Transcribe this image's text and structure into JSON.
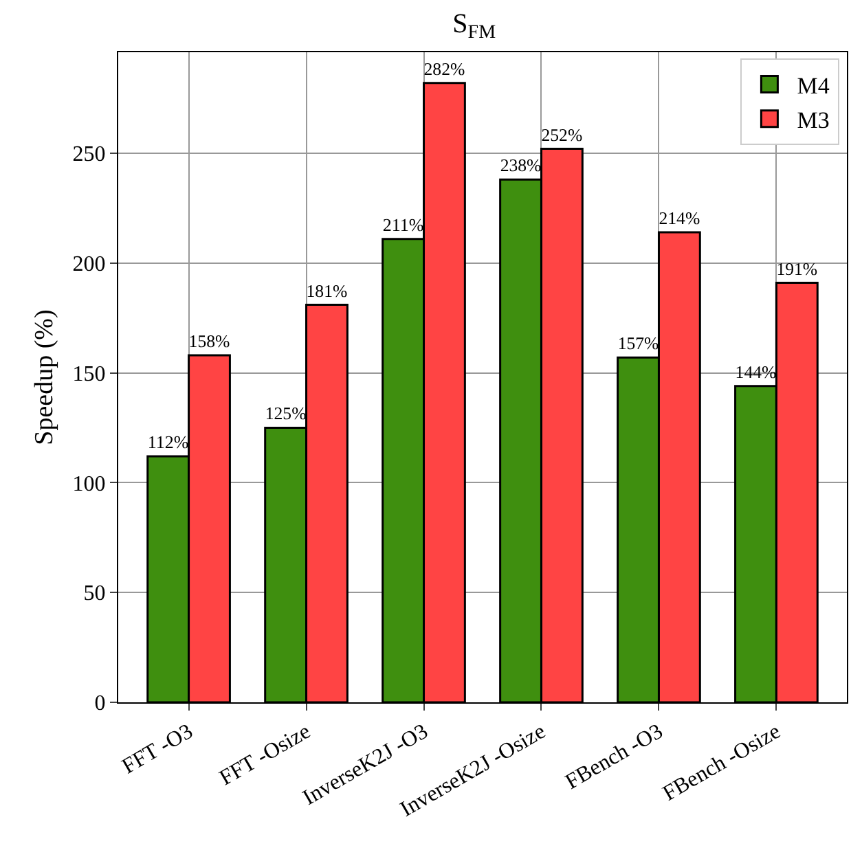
{
  "chart_data": {
    "type": "bar",
    "title": "S$_{FM}$",
    "ylabel": "Speedup (%)",
    "categories": [
      "FFT -O3",
      "FFT -Osize",
      "InverseK2J -O3",
      "InverseK2J -Osize",
      "FBench -O3",
      "FBench -Osize"
    ],
    "series": [
      {
        "name": "M4",
        "color": "#3f8f0f",
        "values": [
          112,
          125,
          211,
          238,
          157,
          144
        ],
        "value_labels": [
          "112%",
          "125%",
          "211%",
          "238%",
          "157%",
          "144%"
        ]
      },
      {
        "name": "M3",
        "color": "#ff4444",
        "values": [
          158,
          181,
          282,
          252,
          214,
          191
        ],
        "value_labels": [
          "158%",
          "181%",
          "282%",
          "252%",
          "214%",
          "191%"
        ]
      }
    ],
    "ylim": [
      0,
      296
    ],
    "yticks": [
      0,
      50,
      100,
      150,
      200,
      250
    ],
    "grid": true,
    "legend": "top right"
  }
}
